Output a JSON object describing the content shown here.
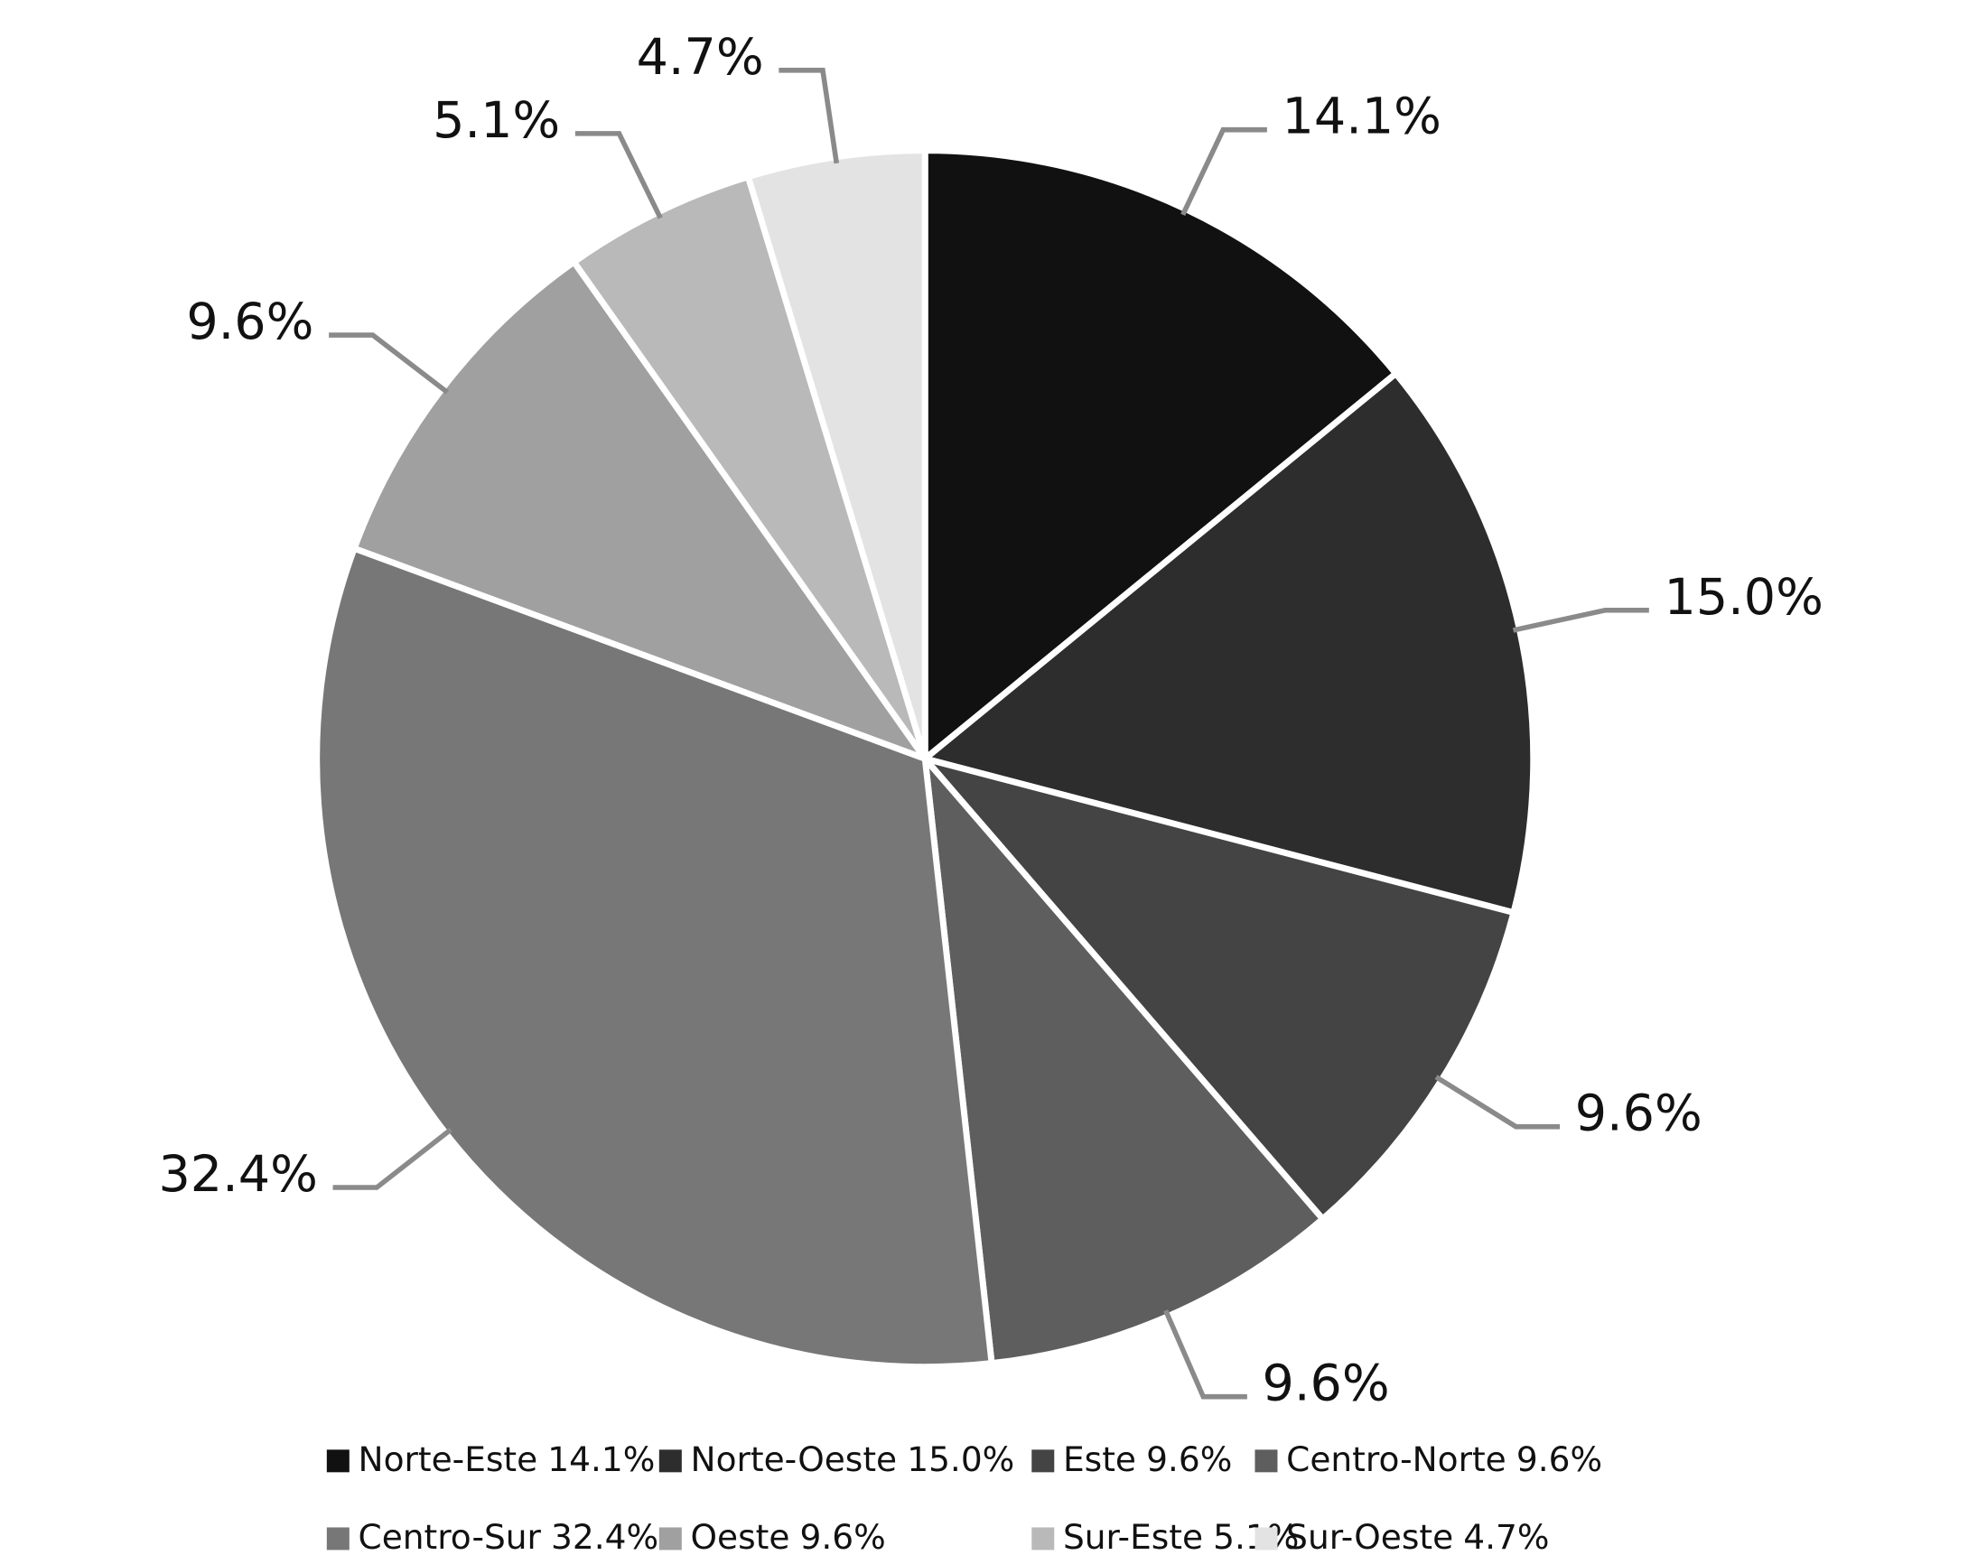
{
  "chart_data": {
    "type": "pie",
    "categories": [
      "Norte-Este",
      "Norte-Oeste",
      "Este",
      "Centro-Norte",
      "Centro-Sur",
      "Oeste",
      "Sur-Este",
      "Sur-Oeste"
    ],
    "values": [
      14.1,
      15.0,
      9.6,
      9.6,
      32.4,
      9.6,
      5.1,
      4.7
    ],
    "value_labels": [
      "14.1%",
      "15.0%",
      "9.6%",
      "9.6%",
      "32.4%",
      "9.6%",
      "5.1%",
      "4.7%"
    ],
    "colors": [
      "#111111",
      "#2d2d2d",
      "#444444",
      "#5e5e5e",
      "#777777",
      "#a0a0a0",
      "#b9b9b9",
      "#e3e3e3"
    ],
    "legend": "bottom"
  }
}
